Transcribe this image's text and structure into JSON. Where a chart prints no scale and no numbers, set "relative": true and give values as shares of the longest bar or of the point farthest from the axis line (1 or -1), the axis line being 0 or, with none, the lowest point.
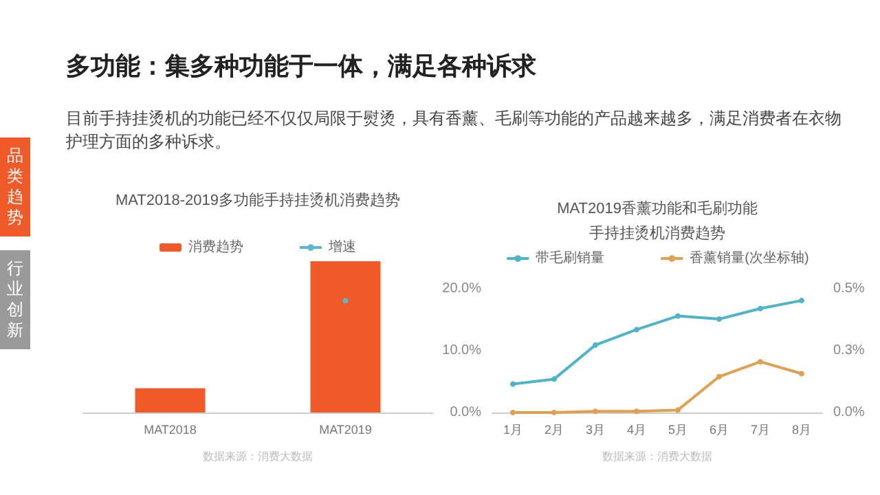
{
  "chart_data": [
    {
      "type": "other",
      "title": "多功能：集多种功能于一体，满足各种诉求",
      "annotations": [
        "目前手持挂烫机的功能已经不仅仅局限于熨烫，具有香薰、毛刷等功能的产品越来越多，满足消费者在衣物护理方面的多种诉求。",
        "品类趋势",
        "行业创新"
      ]
    },
    {
      "type": "bar",
      "title": "MAT2018-2019多功能手持挂烫机消费趋势",
      "relative": true,
      "categories": [
        "MAT2018",
        "MAT2019"
      ],
      "legend": "top",
      "marker": "circle",
      "annotations": [
        "数据来源：消费大数据"
      ],
      "series": [
        {
          "name": "消费趋势",
          "color": "#f05a28",
          "values": [
            0.16,
            1
          ]
        },
        {
          "name": "增速",
          "type": "line",
          "color": "#5bb8d0",
          "values": [
            null,
            0.74
          ]
        }
      ]
    },
    {
      "type": "line",
      "title": "MAT2019香薰功能和毛刷功能手持挂烫机消费趋势",
      "categories": [
        "1月",
        "2月",
        "3月",
        "4月",
        "5月",
        "6月",
        "7月",
        "8月"
      ],
      "legend": "top",
      "marker": "circle",
      "ylim": [
        0,
        20
      ],
      "yticks": [
        {
          "value": 0,
          "label": "0.0%"
        },
        {
          "value": 10,
          "label": "10.0%"
        },
        {
          "value": 20,
          "label": "20.0%"
        }
      ],
      "y2lim": [
        0,
        0.5
      ],
      "y2ticks": [
        {
          "value": 0,
          "label": "0.0%"
        },
        {
          "value": 0.25,
          "label": "0.3%"
        },
        {
          "value": 0.5,
          "label": "0.5%"
        }
      ],
      "annotations": [
        "数据来源：消费大数据"
      ],
      "series": [
        {
          "name": "带毛刷销量",
          "color": "#4fb3c9",
          "values": [
            4.6,
            5.4,
            10.9,
            13.4,
            15.6,
            15.1,
            16.8,
            18.1
          ]
        },
        {
          "name": "香薰销量(次坐标轴)",
          "color": "#e0a050",
          "axis": "y2",
          "values": [
            0,
            0,
            0.005,
            0.005,
            0.01,
            0.145,
            0.205,
            0.157
          ]
        }
      ]
    }
  ]
}
